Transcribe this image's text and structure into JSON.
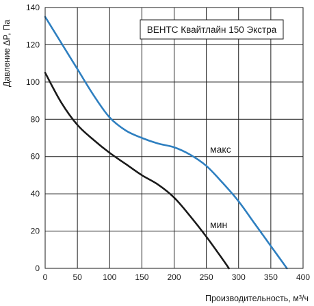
{
  "chart_data": {
    "type": "line",
    "title": "ВЕНТС Квайтлайн 150 Экстра",
    "xlabel": "Производительность, м³/ч",
    "ylabel": "Давление ΔP, Па",
    "xlim": [
      0,
      400
    ],
    "ylim": [
      0,
      140
    ],
    "xticks": [
      0,
      50,
      100,
      150,
      200,
      250,
      300,
      350,
      400
    ],
    "yticks": [
      0,
      20,
      40,
      60,
      80,
      100,
      120,
      140
    ],
    "grid": true,
    "legend": "none",
    "series": [
      {
        "name": "макс",
        "color": "#2e7fc0",
        "x": [
          0,
          25,
          50,
          75,
          100,
          125,
          150,
          175,
          200,
          225,
          250,
          275,
          300,
          325,
          350,
          375
        ],
        "y": [
          135,
          121,
          107,
          93,
          81,
          74,
          70,
          67,
          65,
          61,
          55,
          46,
          36,
          24,
          12,
          0
        ]
      },
      {
        "name": "мин",
        "color": "#1a1a1a",
        "x": [
          0,
          25,
          50,
          75,
          100,
          125,
          150,
          175,
          200,
          225,
          250,
          275,
          285
        ],
        "y": [
          105,
          89,
          77,
          69,
          62,
          56,
          50,
          45,
          38,
          28,
          17,
          5,
          0
        ]
      }
    ]
  }
}
